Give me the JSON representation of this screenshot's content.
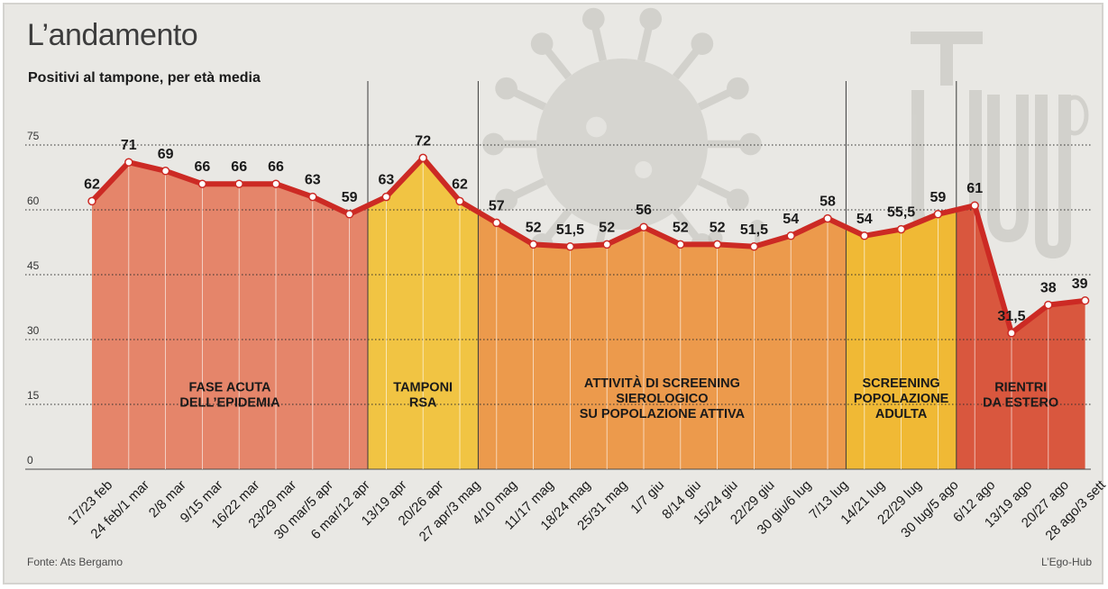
{
  "title": "L’andamento",
  "subtitle": "Positivi al tampone, per età media",
  "source": "Fonte: Ats Bergamo",
  "credit": "L’Ego-Hub",
  "colors": {
    "line": "#cc2a24",
    "phase_1": "#e5856a",
    "phase_2": "#f1c443",
    "phase_3": "#ec9a4c",
    "phase_4": "#f0b935",
    "phase_5": "#d9573e",
    "background": "#e9e8e4"
  },
  "chart_data": {
    "type": "area",
    "title": "L’andamento",
    "subtitle": "Positivi al tampone, per età media",
    "xlabel": "",
    "ylabel": "",
    "ylim": [
      0,
      75
    ],
    "yticks": [
      0,
      15,
      30,
      45,
      60,
      75
    ],
    "grid": true,
    "categories": [
      "17/23 feb",
      "24 feb/1 mar",
      "2/8 mar",
      "9/15 mar",
      "16/22 mar",
      "23/29 mar",
      "30 mar/5 apr",
      "6 mar/12 apr",
      "13/19 apr",
      "20/26 apr",
      "27 apr/3 mag",
      "4/10 mag",
      "11/17 mag",
      "18/24 mag",
      "25/31 mag",
      "1/7 giu",
      "8/14 giu",
      "15/24 giu",
      "22/29 giu",
      "30 giu/6 lug",
      "7/13 lug",
      "14/21 lug",
      "22/29 lug",
      "30 lug/5 ago",
      "6/12 ago",
      "13/19 ago",
      "20/27 ago",
      "28 ago/3 sett"
    ],
    "values": [
      62,
      71,
      69,
      66,
      66,
      66,
      63,
      59,
      63,
      72,
      62,
      57,
      52,
      51.5,
      52,
      56,
      52,
      52,
      51.5,
      54,
      58,
      54,
      55.5,
      59,
      61,
      31.5,
      38,
      39
    ],
    "value_labels": [
      "62",
      "71",
      "69",
      "66",
      "66",
      "66",
      "63",
      "59",
      "63",
      "72",
      "62",
      "57",
      "52",
      "51,5",
      "52",
      "56",
      "52",
      "52",
      "51,5",
      "54",
      "58",
      "54",
      "55,5",
      "59",
      "61",
      "31,5",
      "38",
      "39"
    ],
    "phases": [
      {
        "label_lines": [
          "FASE ACUTA",
          "DELL’EPIDEMIA"
        ],
        "start": 0,
        "end": 7.5,
        "color_key": "phase_1"
      },
      {
        "label_lines": [
          "TAMPONI",
          "RSA"
        ],
        "start": 7.5,
        "end": 10.5,
        "color_key": "phase_2"
      },
      {
        "label_lines": [
          "ATTIVITÀ DI SCREENING",
          "SIEROLOGICO",
          "SU POPOLAZIONE ATTIVA"
        ],
        "start": 10.5,
        "end": 20.5,
        "color_key": "phase_3"
      },
      {
        "label_lines": [
          "SCREENING",
          "POPOLAZIONE",
          "ADULTA"
        ],
        "start": 20.5,
        "end": 23.5,
        "color_key": "phase_4"
      },
      {
        "label_lines": [
          "RIENTRI",
          "DA ESTERO"
        ],
        "start": 23.5,
        "end": 27,
        "color_key": "phase_5"
      }
    ]
  }
}
